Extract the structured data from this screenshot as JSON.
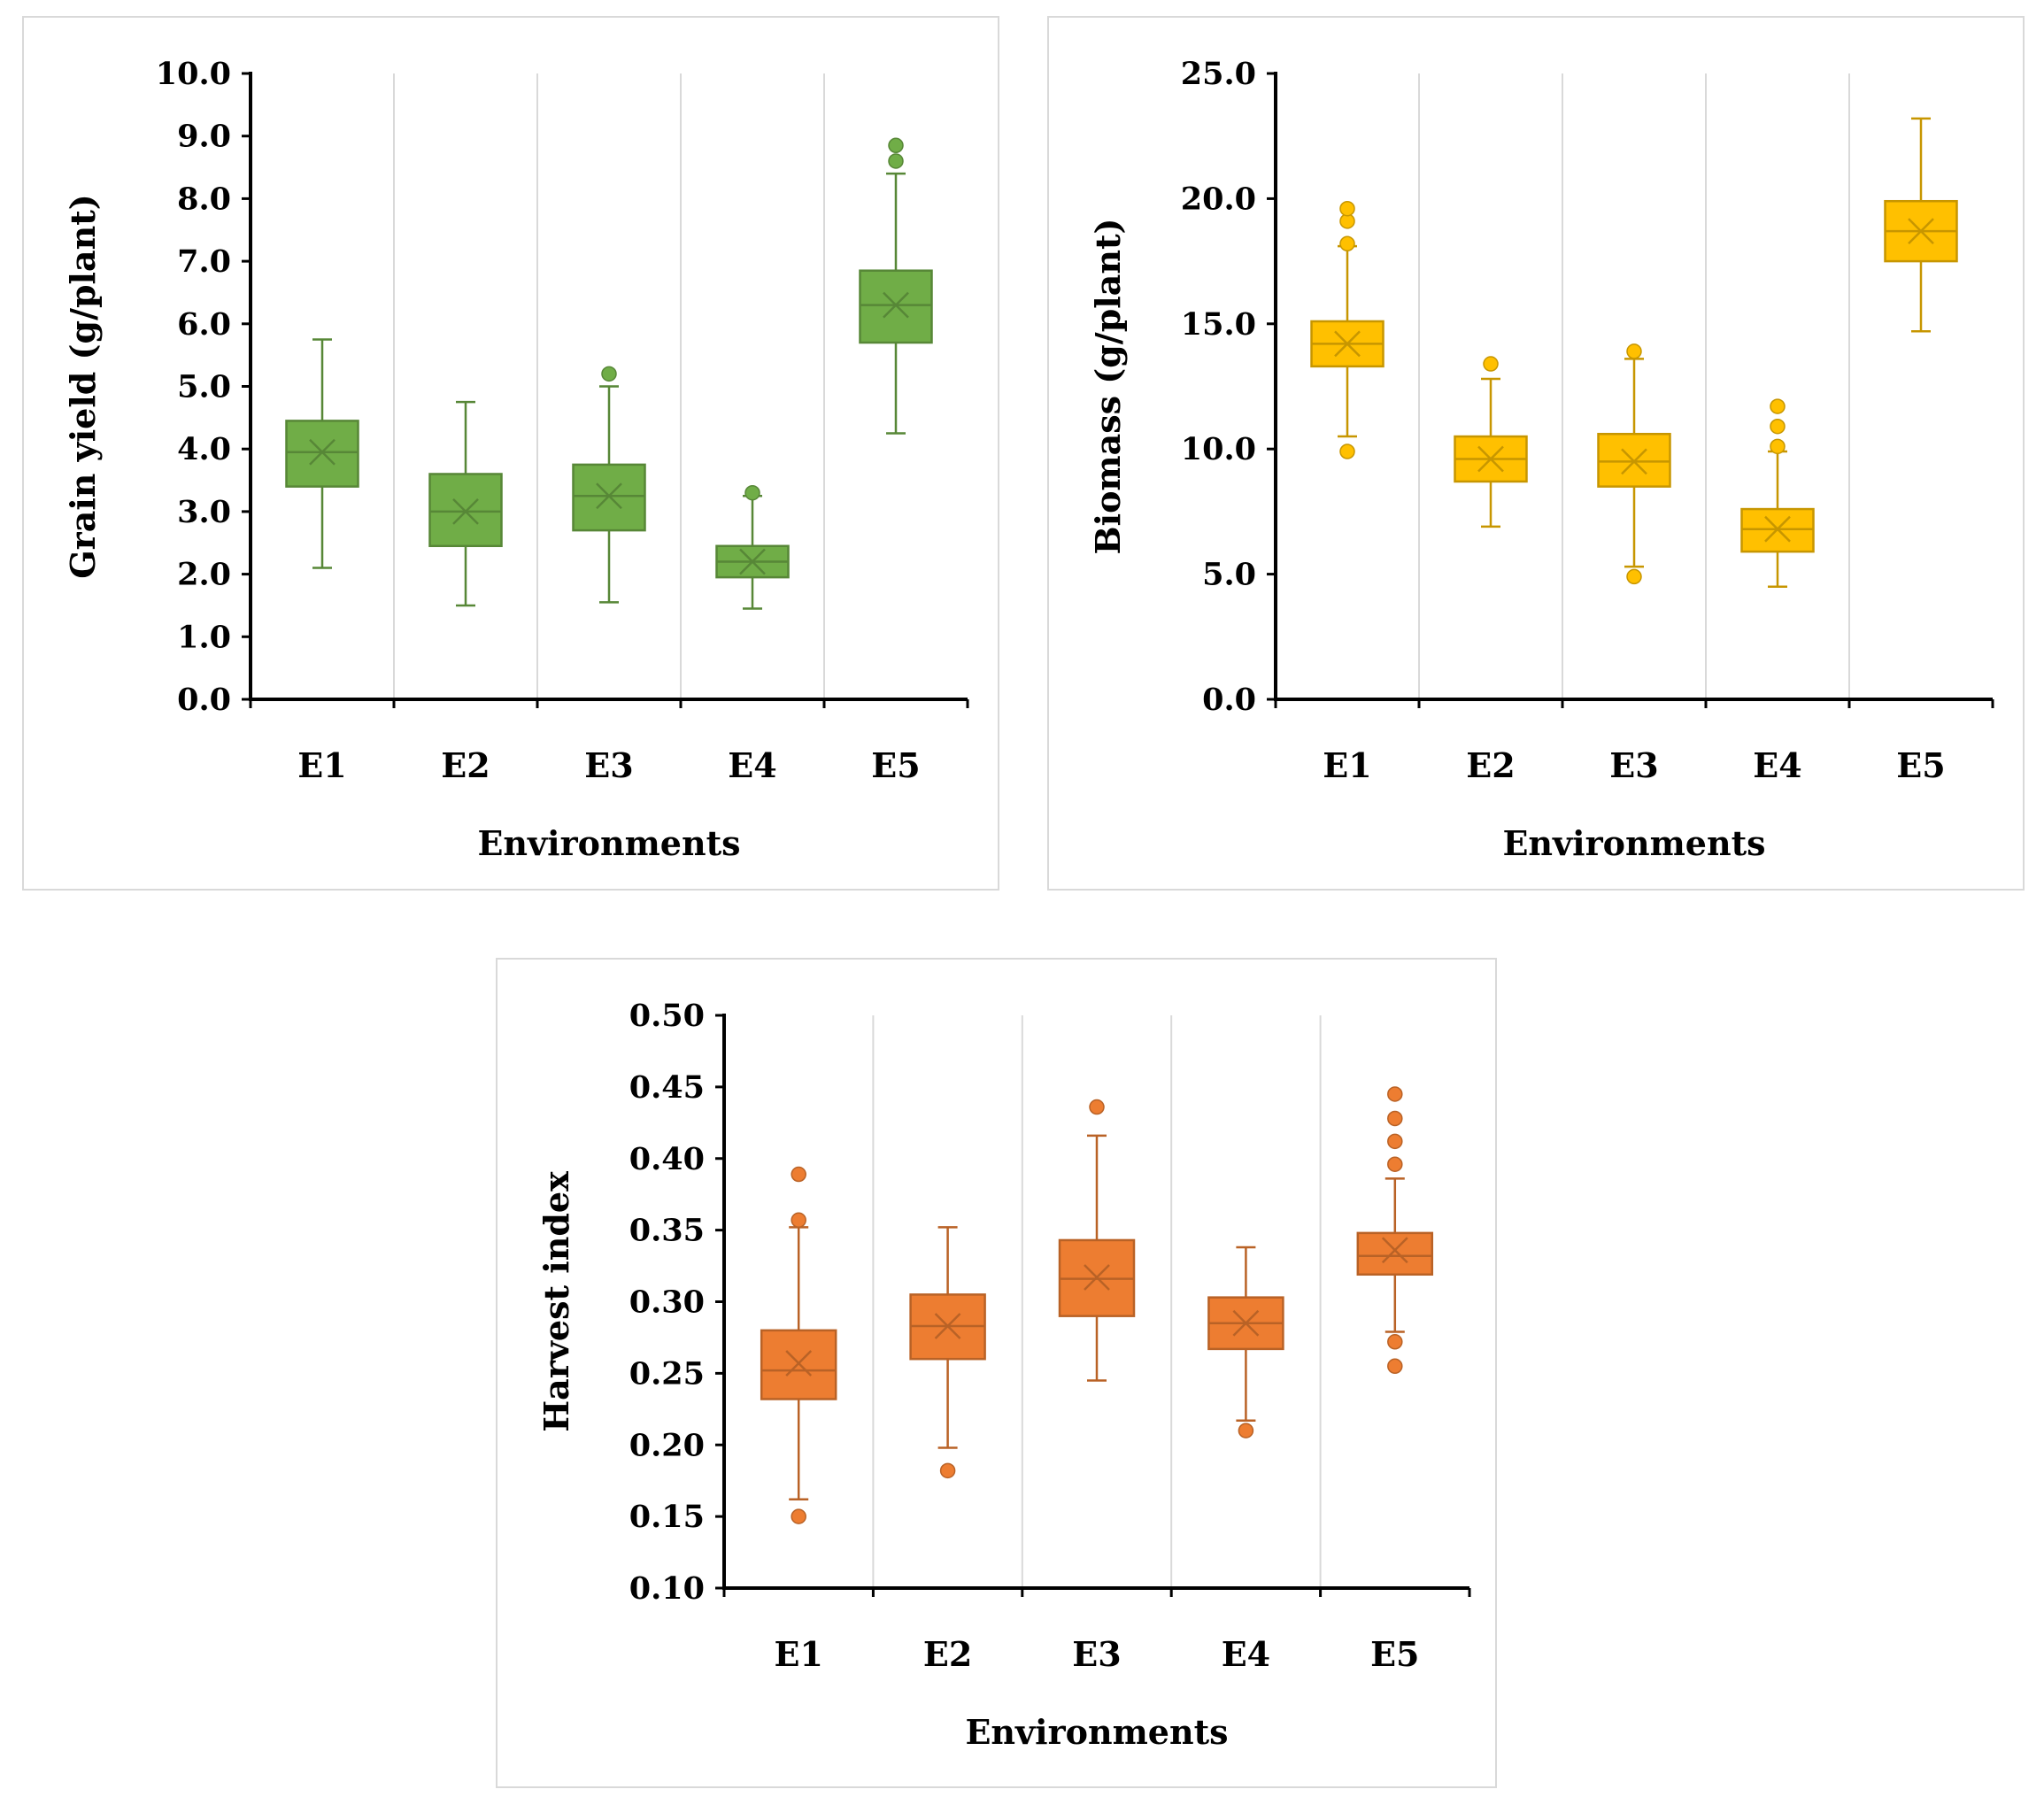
{
  "chart_data": [
    {
      "type": "boxplot",
      "color": "#70ad47",
      "xlabel": "Environments",
      "ylabel": "Grain yield (g/plant)",
      "ylim": [
        0,
        10
      ],
      "yticks": [
        0,
        1,
        2,
        3,
        4,
        5,
        6,
        7,
        8,
        9,
        10
      ],
      "ytick_labels": [
        "0.0",
        "1.0",
        "2.0",
        "3.0",
        "4.0",
        "5.0",
        "6.0",
        "7.0",
        "8.0",
        "9.0",
        "10.0"
      ],
      "categories": [
        "E1",
        "E2",
        "E3",
        "E4",
        "E5"
      ],
      "boxes": [
        {
          "min": 2.1,
          "q1": 3.4,
          "median": 3.95,
          "q3": 4.45,
          "max": 5.75,
          "mean": 3.95,
          "outliers": []
        },
        {
          "min": 1.5,
          "q1": 2.45,
          "median": 3.0,
          "q3": 3.6,
          "max": 4.75,
          "mean": 3.0,
          "outliers": []
        },
        {
          "min": 1.55,
          "q1": 2.7,
          "median": 3.25,
          "q3": 3.75,
          "max": 5.0,
          "mean": 3.25,
          "outliers": [
            5.2
          ]
        },
        {
          "min": 1.45,
          "q1": 1.95,
          "median": 2.2,
          "q3": 2.45,
          "max": 3.25,
          "mean": 2.2,
          "outliers": [
            3.3
          ]
        },
        {
          "min": 4.25,
          "q1": 5.7,
          "median": 6.3,
          "q3": 6.85,
          "max": 8.4,
          "mean": 6.3,
          "outliers": [
            8.6,
            8.85
          ]
        }
      ]
    },
    {
      "type": "boxplot",
      "color": "#ffc000",
      "xlabel": "Environments",
      "ylabel": "Biomass (g/plant)",
      "ylim": [
        0,
        25
      ],
      "yticks": [
        0,
        5,
        10,
        15,
        20,
        25
      ],
      "ytick_labels": [
        "0.0",
        "5.0",
        "10.0",
        "15.0",
        "20.0",
        "25.0"
      ],
      "categories": [
        "E1",
        "E2",
        "E3",
        "E4",
        "E5"
      ],
      "boxes": [
        {
          "min": 10.5,
          "q1": 13.3,
          "median": 14.2,
          "q3": 15.1,
          "max": 18.1,
          "mean": 14.2,
          "outliers": [
            9.9,
            18.2,
            19.1,
            19.6
          ]
        },
        {
          "min": 6.9,
          "q1": 8.7,
          "median": 9.6,
          "q3": 10.5,
          "max": 12.8,
          "mean": 9.6,
          "outliers": [
            13.4
          ]
        },
        {
          "min": 5.3,
          "q1": 8.5,
          "median": 9.5,
          "q3": 10.6,
          "max": 13.6,
          "mean": 9.5,
          "outliers": [
            4.9,
            13.9
          ]
        },
        {
          "min": 4.5,
          "q1": 5.9,
          "median": 6.8,
          "q3": 7.6,
          "max": 9.9,
          "mean": 6.8,
          "outliers": [
            10.1,
            10.9,
            11.7
          ]
        },
        {
          "min": 14.7,
          "q1": 17.5,
          "median": 18.7,
          "q3": 19.9,
          "max": 23.2,
          "mean": 18.7,
          "outliers": []
        }
      ]
    },
    {
      "type": "boxplot",
      "color": "#ed7d31",
      "xlabel": "Environments",
      "ylabel": "Harvest index",
      "ylim": [
        0.1,
        0.5
      ],
      "yticks": [
        0.1,
        0.15,
        0.2,
        0.25,
        0.3,
        0.35,
        0.4,
        0.45,
        0.5
      ],
      "ytick_labels": [
        "0.10",
        "0.15",
        "0.20",
        "0.25",
        "0.30",
        "0.35",
        "0.40",
        "0.45",
        "0.50"
      ],
      "categories": [
        "E1",
        "E2",
        "E3",
        "E4",
        "E5"
      ],
      "boxes": [
        {
          "min": 0.162,
          "q1": 0.232,
          "median": 0.252,
          "q3": 0.28,
          "max": 0.352,
          "mean": 0.257,
          "outliers": [
            0.15,
            0.357,
            0.389
          ]
        },
        {
          "min": 0.198,
          "q1": 0.26,
          "median": 0.283,
          "q3": 0.305,
          "max": 0.352,
          "mean": 0.283,
          "outliers": [
            0.182
          ]
        },
        {
          "min": 0.245,
          "q1": 0.29,
          "median": 0.316,
          "q3": 0.343,
          "max": 0.416,
          "mean": 0.317,
          "outliers": [
            0.436
          ]
        },
        {
          "min": 0.217,
          "q1": 0.267,
          "median": 0.285,
          "q3": 0.303,
          "max": 0.338,
          "mean": 0.285,
          "outliers": [
            0.21
          ]
        },
        {
          "min": 0.279,
          "q1": 0.319,
          "median": 0.332,
          "q3": 0.348,
          "max": 0.386,
          "mean": 0.336,
          "outliers": [
            0.255,
            0.272,
            0.396,
            0.412,
            0.428,
            0.445
          ]
        }
      ]
    }
  ]
}
